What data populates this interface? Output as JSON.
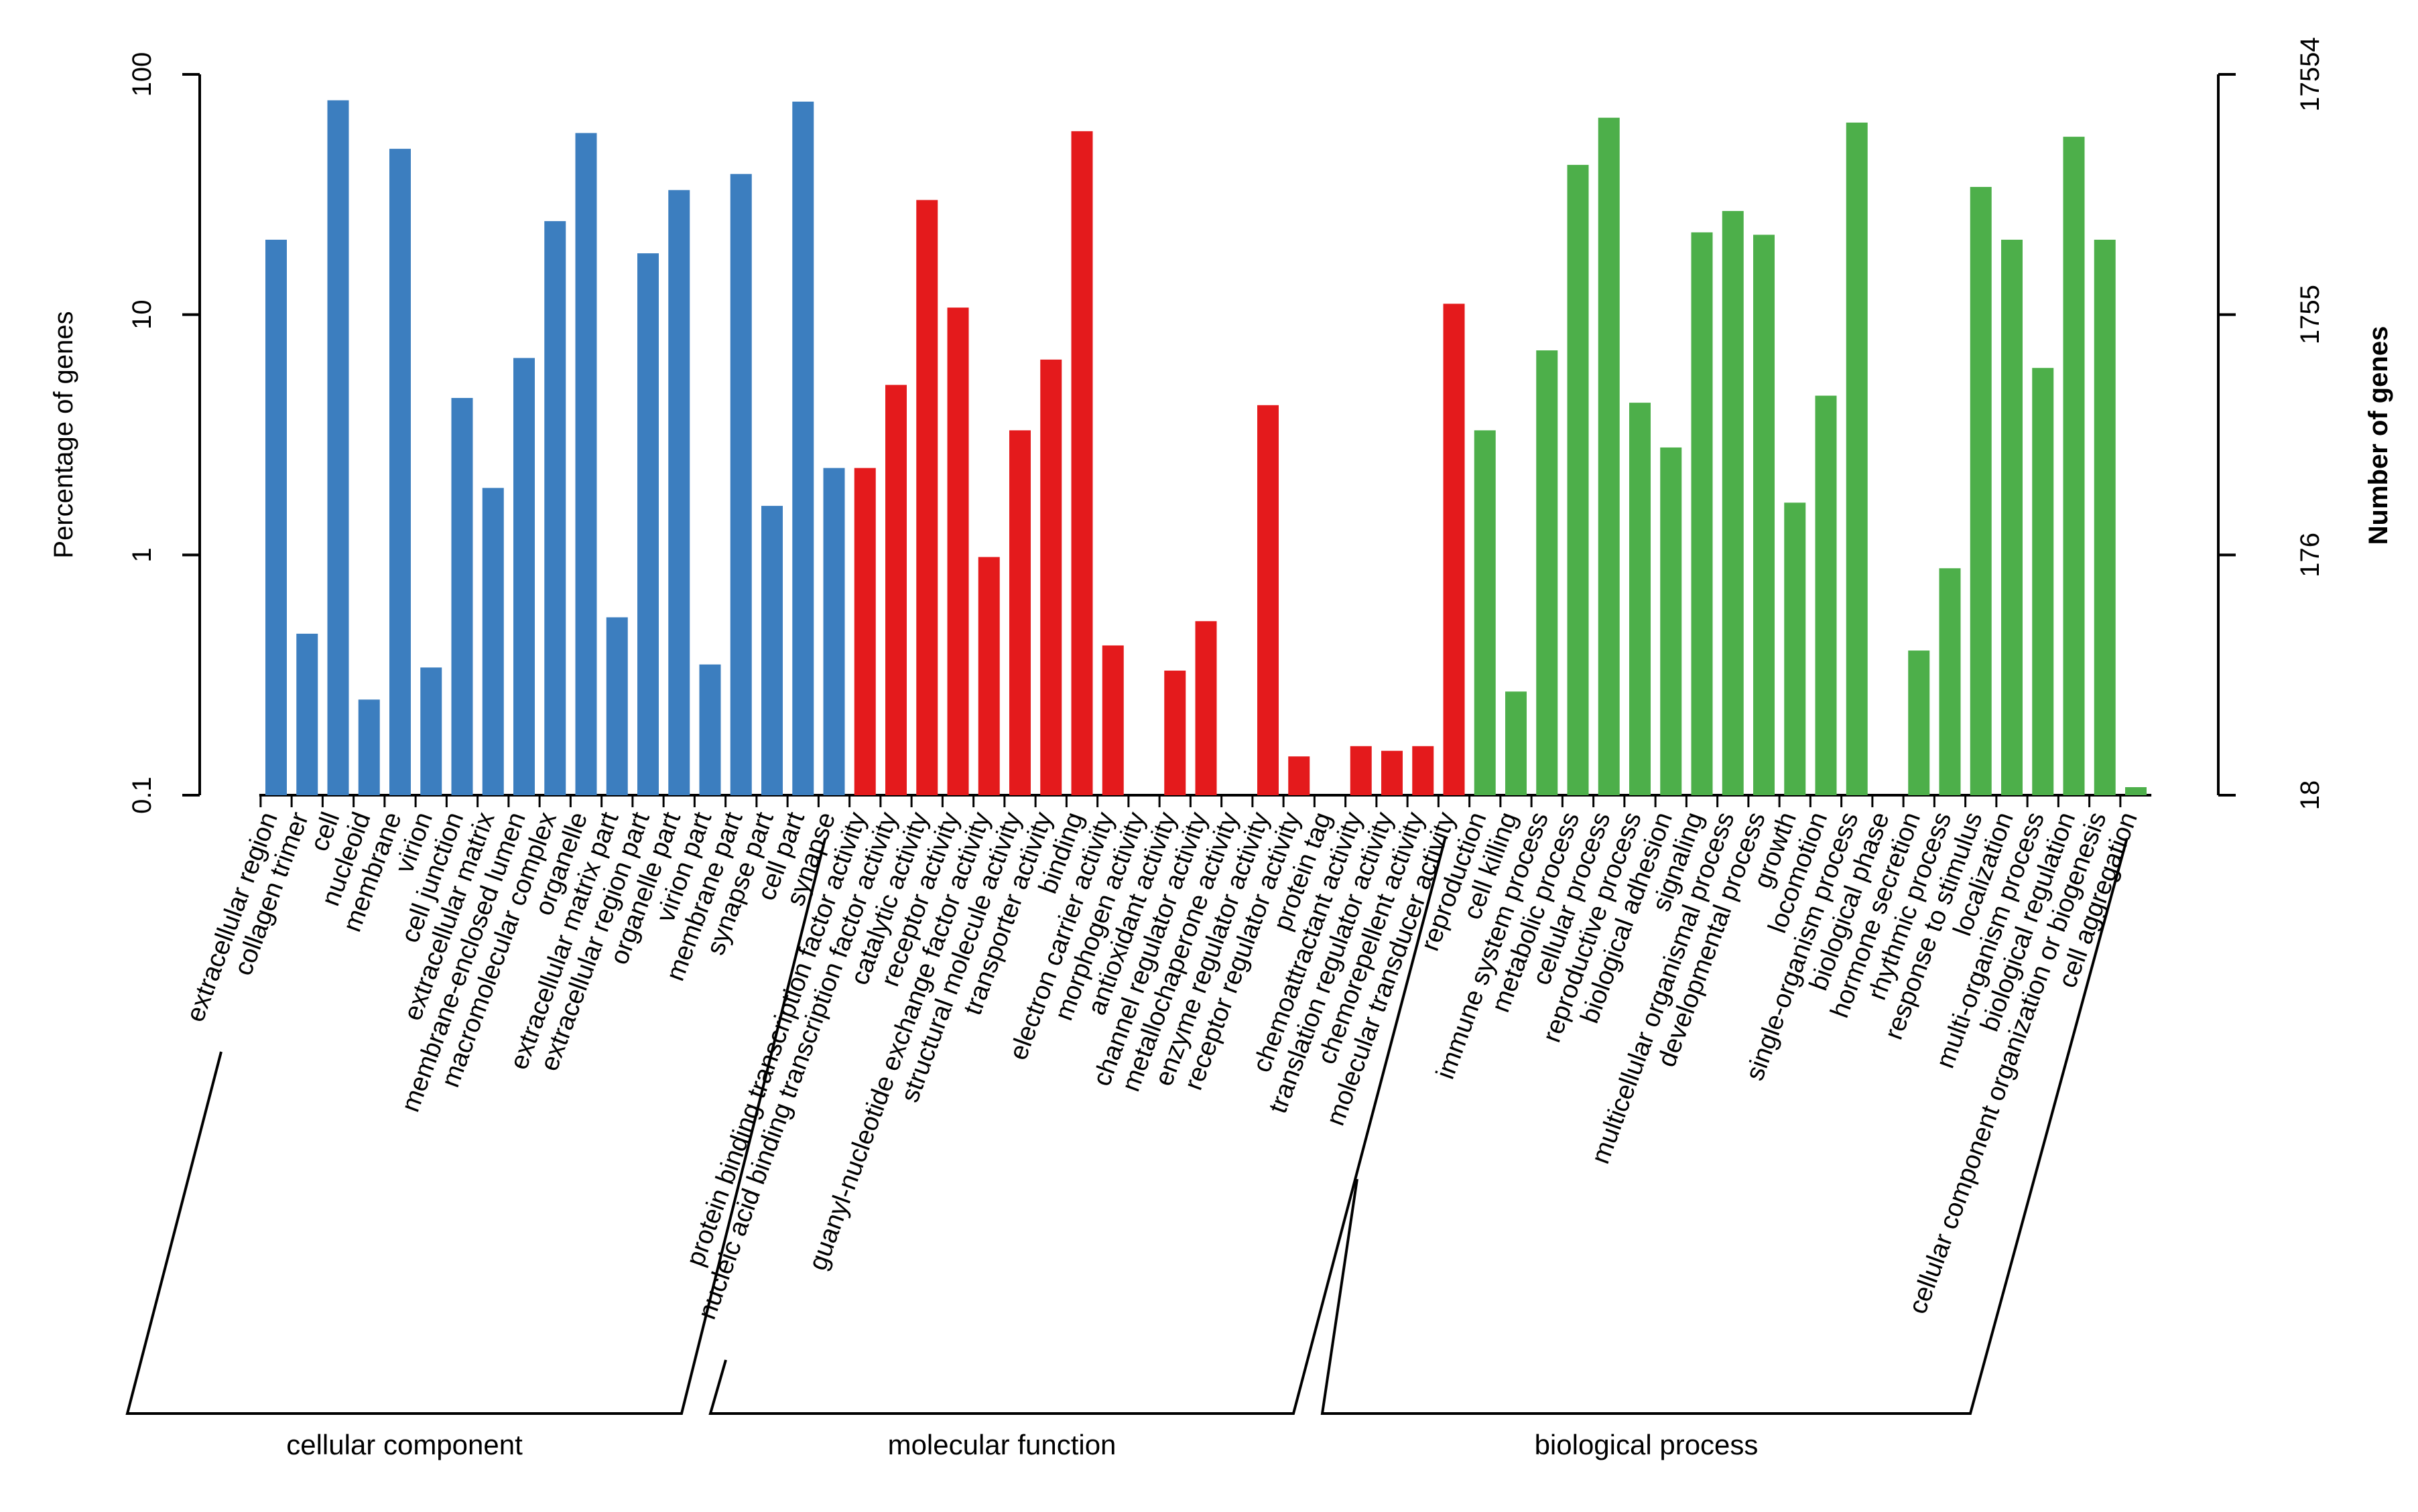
{
  "chart_data": {
    "type": "bar",
    "title": "",
    "xlabel": "",
    "ylabel": "Percentage of genes",
    "ylabel_right": "Number of genes",
    "y_scale": "log",
    "ylim": [
      0.1,
      100
    ],
    "yticks": [
      0.1,
      1,
      10,
      100
    ],
    "ytick_labels": [
      "0.1",
      "1",
      "10",
      "100"
    ],
    "yticks_right": [
      "18",
      "176",
      "1755",
      "17554"
    ],
    "grid": false,
    "legend": "none",
    "colors": {
      "cellular component": "#3c7ebf",
      "molecular function": "#e41a1c",
      "biological process": "#4daf4a"
    },
    "groups": [
      {
        "name": "cellular component",
        "categories": [
          "extracellular region",
          "collagen trimer",
          "cell",
          "nucleoid",
          "membrane",
          "virion",
          "cell junction",
          "extracellular matrix",
          "membrane-enclosed lumen",
          "macromolecular complex",
          "organelle",
          "extracellular matrix part",
          "extracellular region part",
          "organelle part",
          "virion part",
          "membrane part",
          "synapse part",
          "cell part",
          "synapse"
        ],
        "values": [
          20.5,
          0.47,
          78,
          0.25,
          49,
          0.34,
          4.5,
          1.9,
          6.6,
          24.5,
          57,
          0.55,
          18,
          33,
          0.35,
          38.5,
          1.6,
          77,
          2.3
        ]
      },
      {
        "name": "molecular function",
        "categories": [
          "protein binding transcription factor activity",
          "nucleic acid binding transcription factor activity",
          "catalytic activity",
          "receptor activity",
          "guanyl-nucleotide exchange factor activity",
          "structural molecule activity",
          "transporter activity",
          "binding",
          "electron carrier activity",
          "morphogen activity",
          "antioxidant activity",
          "channel regulator activity",
          "metallochaperone activity",
          "enzyme regulator activity",
          "receptor regulator activity",
          "protein tag",
          "chemoattractant activity",
          "translation regulator activity",
          "chemorepellent activity",
          "molecular transducer activity"
        ],
        "values": [
          2.3,
          5.1,
          30,
          10.7,
          0.98,
          3.3,
          6.5,
          58,
          0.42,
          null,
          0.33,
          0.53,
          null,
          4.2,
          0.145,
          null,
          0.16,
          0.153,
          0.16,
          11.1
        ]
      },
      {
        "name": "biological process",
        "categories": [
          "reproduction",
          "cell killing",
          "immune system process",
          "metabolic process",
          "cellular process",
          "reproductive process",
          "biological adhesion",
          "signaling",
          "multicellular organismal process",
          "developmental process",
          "growth",
          "locomotion",
          "single-organism process",
          "biological phase",
          "hormone secretion",
          "rhythmic process",
          "response to stimulus",
          "localization",
          "multi-organism process",
          "biological regulation",
          "cellular component organization or biogenesis",
          "cell aggregation"
        ],
        "values": [
          3.3,
          0.27,
          7.1,
          42,
          66,
          4.3,
          2.8,
          22,
          27,
          21.5,
          1.65,
          4.6,
          63,
          null,
          0.4,
          0.88,
          34,
          20.5,
          6,
          55,
          20.5,
          0.108
        ]
      }
    ]
  }
}
